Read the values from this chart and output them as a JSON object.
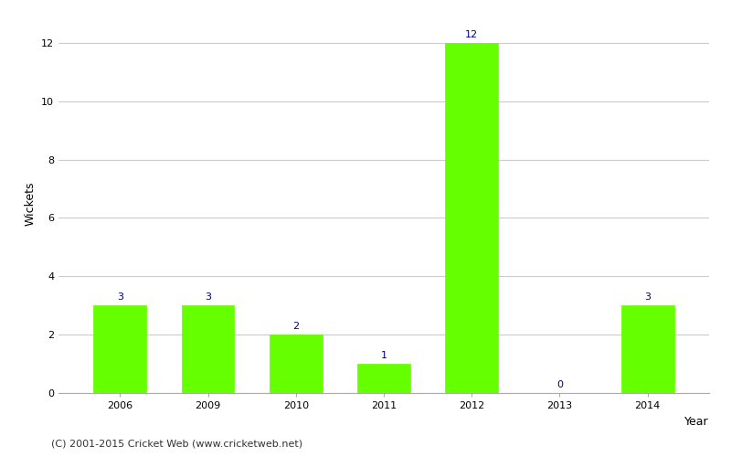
{
  "years": [
    "2006",
    "2009",
    "2010",
    "2011",
    "2012",
    "2013",
    "2014"
  ],
  "values": [
    3,
    3,
    2,
    1,
    12,
    0,
    3
  ],
  "bar_color": "#66ff00",
  "bar_edge_color": "#66ff00",
  "annotation_color": "#000080",
  "xlabel": "Year",
  "ylabel": "Wickets",
  "ylim": [
    0,
    13.0
  ],
  "yticks": [
    0,
    2,
    4,
    6,
    8,
    10,
    12
  ],
  "grid_color": "#cccccc",
  "background_color": "#ffffff",
  "annotation_fontsize": 8,
  "axis_label_fontsize": 9,
  "tick_fontsize": 8,
  "footer_text": "(C) 2001-2015 Cricket Web (www.cricketweb.net)",
  "footer_fontsize": 8,
  "bar_width": 0.6
}
